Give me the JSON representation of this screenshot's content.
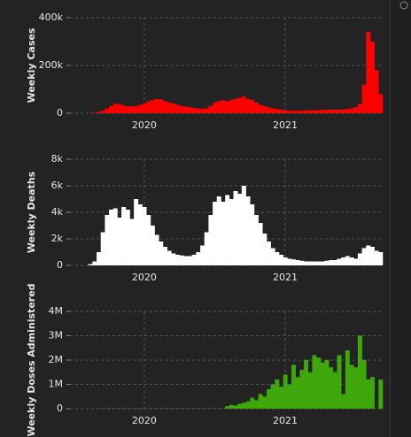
{
  "chart_data": [
    {
      "type": "bar",
      "ylabel": "Weekly Cases",
      "color": "#ff0000",
      "categories": [
        null,
        null,
        null,
        null,
        null,
        null,
        null,
        null,
        null,
        null,
        null,
        null,
        null,
        null,
        "2020",
        null,
        null,
        null,
        null,
        null,
        null,
        null,
        null,
        null,
        null,
        null,
        null,
        null,
        null,
        null,
        null,
        null,
        null,
        null,
        null,
        null,
        null,
        null,
        null,
        null,
        null,
        null,
        null,
        null,
        null,
        null,
        null,
        null,
        "2021",
        null,
        null,
        null,
        null,
        null,
        null,
        null,
        null,
        null,
        null,
        null,
        null,
        null,
        null,
        null,
        null,
        null,
        null,
        null,
        null,
        null,
        null,
        null
      ],
      "values": [
        0,
        0,
        2000,
        5000,
        10000,
        20000,
        30000,
        40000,
        38000,
        32000,
        30000,
        28000,
        30000,
        35000,
        40000,
        50000,
        55000,
        60000,
        58000,
        50000,
        45000,
        40000,
        35000,
        30000,
        28000,
        25000,
        22000,
        20000,
        18000,
        20000,
        30000,
        45000,
        50000,
        55000,
        50000,
        55000,
        60000,
        65000,
        70000,
        60000,
        55000,
        45000,
        35000,
        30000,
        25000,
        20000,
        18000,
        15000,
        12000,
        10000,
        10000,
        10000,
        10000,
        12000,
        12000,
        12000,
        13000,
        14000,
        14000,
        15000,
        15000,
        15000,
        16000,
        18000,
        20000,
        25000,
        40000,
        120000,
        340000,
        300000,
        180000,
        80000
      ],
      "ylim": [
        0,
        400000
      ],
      "yticks": [
        0,
        {
          "value": 200000,
          "label": "200k"
        },
        {
          "value": 400000,
          "label": "400k"
        }
      ],
      "grid": true
    },
    {
      "type": "bar",
      "ylabel": "Weekly Deaths",
      "color": "#ffffff",
      "categories": [
        null,
        null,
        null,
        null,
        null,
        null,
        null,
        null,
        null,
        null,
        null,
        null,
        null,
        null,
        "2020",
        null,
        null,
        null,
        null,
        null,
        null,
        null,
        null,
        null,
        null,
        null,
        null,
        null,
        null,
        null,
        null,
        null,
        null,
        null,
        null,
        null,
        null,
        null,
        null,
        null,
        null,
        null,
        null,
        null,
        null,
        null,
        null,
        null,
        "2021",
        null,
        null,
        null,
        null,
        null,
        null,
        null,
        null,
        null,
        null,
        null,
        null,
        null,
        null,
        null,
        null,
        null,
        null,
        null,
        null,
        null,
        null,
        null
      ],
      "values": [
        0,
        100,
        300,
        1000,
        2500,
        3800,
        4200,
        4300,
        3600,
        4400,
        4200,
        3500,
        5000,
        4600,
        4400,
        3800,
        3000,
        2300,
        1800,
        1400,
        1100,
        900,
        800,
        750,
        700,
        700,
        800,
        1000,
        1500,
        2500,
        3800,
        4800,
        5200,
        4800,
        5300,
        5000,
        5600,
        5400,
        6000,
        5200,
        4600,
        3800,
        3200,
        2400,
        1800,
        1300,
        1000,
        800,
        600,
        500,
        450,
        400,
        350,
        300,
        300,
        300,
        300,
        300,
        350,
        400,
        400,
        500,
        600,
        700,
        600,
        500,
        900,
        1300,
        1500,
        1400,
        1100,
        1000
      ],
      "ylim": [
        0,
        8000
      ],
      "yticks": [
        0,
        {
          "value": 2000,
          "label": "2k"
        },
        {
          "value": 4000,
          "label": "4k"
        },
        {
          "value": 6000,
          "label": "6k"
        },
        {
          "value": 8000,
          "label": "8k"
        }
      ],
      "grid": true
    },
    {
      "type": "bar",
      "ylabel": "Weekly Doses Administered",
      "color": "#3ea80a",
      "categories": [
        null,
        null,
        null,
        null,
        null,
        null,
        null,
        null,
        null,
        null,
        null,
        null,
        null,
        null,
        "2020",
        null,
        null,
        null,
        null,
        null,
        null,
        null,
        null,
        null,
        null,
        null,
        null,
        null,
        null,
        null,
        null,
        null,
        null,
        null,
        null,
        null,
        null,
        null,
        null,
        null,
        null,
        null,
        null,
        null,
        null,
        null,
        null,
        null,
        "2021",
        null,
        null,
        null,
        null,
        null,
        null,
        null,
        null,
        null,
        null,
        null,
        null,
        null,
        null,
        null,
        null,
        null,
        null,
        null,
        null,
        null,
        null,
        null
      ],
      "values": [
        0,
        0,
        0,
        10000,
        10000,
        10000,
        10000,
        10000,
        10000,
        10000,
        10000,
        10000,
        10000,
        10000,
        10000,
        10000,
        10000,
        10000,
        10000,
        10000,
        10000,
        10000,
        10000,
        10000,
        10000,
        10000,
        10000,
        10000,
        10000,
        10000,
        10000,
        10000,
        10000,
        10000,
        100000,
        150000,
        120000,
        200000,
        250000,
        300000,
        450000,
        350000,
        600000,
        500000,
        800000,
        1000000,
        1200000,
        900000,
        1400000,
        1000000,
        1800000,
        1300000,
        1600000,
        2000000,
        1500000,
        2200000,
        2100000,
        1900000,
        2000000,
        1700000,
        1500000,
        2200000,
        600000,
        2400000,
        1800000,
        1700000,
        3000000,
        2000000,
        1200000,
        1300000,
        0,
        1200000
      ],
      "ylim": [
        0,
        4000000
      ],
      "yticks": [
        0,
        {
          "value": 1000000,
          "label": "1M"
        },
        {
          "value": 2000000,
          "label": "2M"
        },
        {
          "value": 3000000,
          "label": "3M"
        },
        {
          "value": 4000000,
          "label": "4M"
        }
      ],
      "grid": true
    }
  ]
}
